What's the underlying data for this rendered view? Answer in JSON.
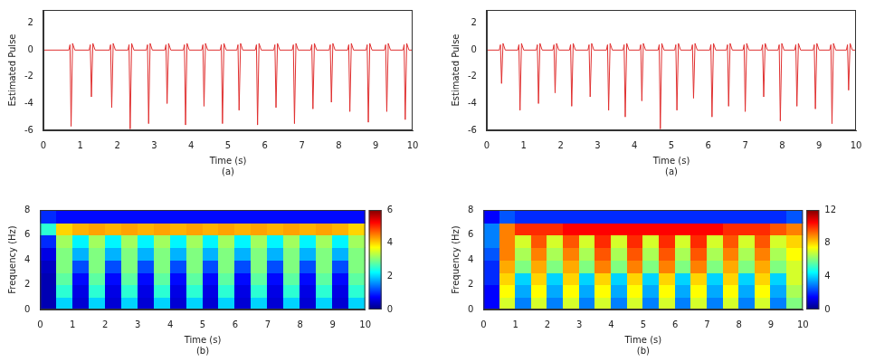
{
  "chart_data": [
    {
      "type": "line",
      "xlabel": "Time (s)",
      "ylabel": "Estimated Pulse",
      "caption": "(a)",
      "color": "#e03030",
      "grid": false,
      "xlim": [
        0,
        10
      ],
      "xticks": [
        0,
        1,
        2,
        3,
        4,
        5,
        6,
        7,
        8,
        9,
        10
      ],
      "ylim": [
        -6,
        3
      ],
      "yticks": [
        -6,
        -4,
        -2,
        0,
        2
      ],
      "x": [
        0,
        0.69,
        0.72,
        0.75,
        0.79,
        0.85,
        1.24,
        1.27,
        1.3,
        1.34,
        1.4,
        1.79,
        1.82,
        1.85,
        1.89,
        1.95,
        2.29,
        2.32,
        2.35,
        2.39,
        2.45,
        2.79,
        2.82,
        2.85,
        2.89,
        2.95,
        3.29,
        3.32,
        3.35,
        3.39,
        3.45,
        3.79,
        3.82,
        3.85,
        3.89,
        3.95,
        4.29,
        4.32,
        4.35,
        4.39,
        4.45,
        4.79,
        4.82,
        4.85,
        4.89,
        4.95,
        5.24,
        5.27,
        5.3,
        5.34,
        5.4,
        5.74,
        5.77,
        5.8,
        5.84,
        5.9,
        6.24,
        6.27,
        6.3,
        6.34,
        6.4,
        6.74,
        6.77,
        6.8,
        6.84,
        6.9,
        7.24,
        7.27,
        7.3,
        7.34,
        7.4,
        7.74,
        7.77,
        7.8,
        7.84,
        7.9,
        8.24,
        8.27,
        8.3,
        8.34,
        8.4,
        8.74,
        8.77,
        8.8,
        8.84,
        8.9,
        9.24,
        9.27,
        9.3,
        9.34,
        9.4,
        9.74,
        9.77,
        9.8,
        9.84,
        9.9,
        10
      ],
      "values": [
        0,
        0,
        0.4,
        -5.7,
        0.5,
        0,
        0,
        0.4,
        -3.5,
        0.5,
        0,
        0,
        0.4,
        -4.3,
        0.5,
        0,
        0,
        0.4,
        -5.9,
        0.5,
        0,
        0,
        0.4,
        -5.5,
        0.5,
        0,
        0,
        0.4,
        -4.0,
        0.5,
        0,
        0,
        0.4,
        -5.6,
        0.5,
        0,
        0,
        0.4,
        -4.2,
        0.5,
        0,
        0,
        0.4,
        -5.5,
        0.5,
        0,
        0,
        0.4,
        -4.5,
        0.5,
        0,
        0,
        0.4,
        -5.6,
        0.5,
        0,
        0,
        0.4,
        -4.3,
        0.5,
        0,
        0,
        0.4,
        -5.5,
        0.5,
        0,
        0,
        0.4,
        -4.4,
        0.5,
        0,
        0,
        0.4,
        -3.9,
        0.5,
        0,
        0,
        0.4,
        -4.6,
        0.5,
        0,
        0,
        0.4,
        -5.4,
        0.5,
        0,
        0,
        0.4,
        -4.6,
        0.5,
        0,
        0,
        0.4,
        -5.2,
        0.5,
        0,
        0
      ]
    },
    {
      "type": "line",
      "xlabel": "Time (s)",
      "ylabel": "Estimated Pulse",
      "caption": "(a)",
      "color": "#e03030",
      "grid": false,
      "xlim": [
        0,
        10
      ],
      "xticks": [
        0,
        1,
        2,
        3,
        4,
        5,
        6,
        7,
        8,
        9,
        10
      ],
      "ylim": [
        -6,
        3
      ],
      "yticks": [
        -6,
        -4,
        -2,
        0,
        2
      ],
      "x": [
        0,
        0.34,
        0.37,
        0.4,
        0.44,
        0.5,
        0.84,
        0.87,
        0.9,
        0.94,
        1.0,
        1.34,
        1.37,
        1.4,
        1.44,
        1.5,
        1.79,
        1.82,
        1.85,
        1.89,
        1.95,
        2.24,
        2.27,
        2.3,
        2.34,
        2.4,
        2.74,
        2.77,
        2.8,
        2.84,
        2.9,
        3.24,
        3.27,
        3.3,
        3.34,
        3.4,
        3.69,
        3.72,
        3.75,
        3.79,
        3.85,
        4.14,
        4.17,
        4.2,
        4.24,
        4.3,
        4.64,
        4.67,
        4.7,
        4.74,
        4.8,
        5.09,
        5.12,
        5.15,
        5.19,
        5.25,
        5.54,
        5.57,
        5.6,
        5.64,
        5.7,
        6.04,
        6.07,
        6.1,
        6.14,
        6.2,
        6.49,
        6.52,
        6.55,
        6.59,
        6.65,
        6.94,
        6.97,
        7.0,
        7.04,
        7.1,
        7.44,
        7.47,
        7.5,
        7.54,
        7.6,
        7.89,
        7.92,
        7.95,
        7.99,
        8.05,
        8.34,
        8.37,
        8.4,
        8.44,
        8.5,
        8.84,
        8.87,
        8.9,
        8.94,
        9.0,
        9.29,
        9.32,
        9.35,
        9.39,
        9.45,
        9.74,
        9.77,
        9.8,
        9.84,
        9.9,
        10
      ],
      "values": [
        0,
        0,
        0.4,
        -2.5,
        0.5,
        0,
        0,
        0.4,
        -4.5,
        0.5,
        0,
        0,
        0.4,
        -4.0,
        0.5,
        0,
        0,
        0.4,
        -3.2,
        0.5,
        0,
        0,
        0.4,
        -4.2,
        0.5,
        0,
        0,
        0.4,
        -3.5,
        0.5,
        0,
        0,
        0.4,
        -4.5,
        0.5,
        0,
        0,
        0.4,
        -5.0,
        0.5,
        0,
        0,
        0.4,
        -3.8,
        0.5,
        0,
        0,
        0.4,
        -5.9,
        0.5,
        0,
        0,
        0.4,
        -4.5,
        0.5,
        0,
        0,
        0.4,
        -3.6,
        0.5,
        0,
        0,
        0.4,
        -5.0,
        0.5,
        0,
        0,
        0.4,
        -4.2,
        0.5,
        0,
        0,
        0.4,
        -4.6,
        0.5,
        0,
        0,
        0.4,
        -3.5,
        0.5,
        0,
        0,
        0.4,
        -5.3,
        0.5,
        0,
        0,
        0.4,
        -4.2,
        0.5,
        0,
        0,
        0.4,
        -4.4,
        0.5,
        0,
        0,
        0.4,
        -5.5,
        0.5,
        0,
        0,
        0.4,
        -3.0,
        0.5,
        0,
        0
      ]
    },
    {
      "type": "heatmap",
      "xlabel": "Time (s)",
      "ylabel": "Frequency (Hz)",
      "caption": "(b)",
      "xlim": [
        0,
        10
      ],
      "xticks": [
        0,
        1,
        2,
        3,
        4,
        5,
        6,
        7,
        8,
        9,
        10
      ],
      "ylim": [
        0,
        8
      ],
      "yticks": [
        0,
        2,
        4,
        6,
        8
      ],
      "x_bins": [
        0,
        0.5,
        1,
        1.5,
        2,
        2.5,
        3,
        3.5,
        4,
        4.5,
        5,
        5.5,
        6,
        6.5,
        7,
        7.5,
        8,
        8.5,
        9,
        9.5,
        10
      ],
      "y_bins": [
        0,
        1,
        2,
        3,
        4,
        5,
        6,
        7,
        8
      ],
      "colorbar_lim": [
        0,
        6
      ],
      "colorbar_ticks": [
        0,
        2,
        4,
        6
      ],
      "cells": [
        [
          0.3,
          2.0,
          0.5,
          2.0,
          0.5,
          2.0,
          0.5,
          2.0,
          0.5,
          2.0,
          0.5,
          2.0,
          0.5,
          2.0,
          0.5,
          2.0,
          0.5,
          2.0,
          0.5,
          2.0
        ],
        [
          0.3,
          2.5,
          0.6,
          2.5,
          0.6,
          2.5,
          0.6,
          2.5,
          0.6,
          2.5,
          0.6,
          2.5,
          0.6,
          2.5,
          0.6,
          2.5,
          0.6,
          2.5,
          0.6,
          2.5
        ],
        [
          0.3,
          2.8,
          0.8,
          2.8,
          0.8,
          2.8,
          0.8,
          2.8,
          0.8,
          2.8,
          0.8,
          2.8,
          0.8,
          2.8,
          0.8,
          2.8,
          0.8,
          2.8,
          0.8,
          2.8
        ],
        [
          0.4,
          3.0,
          1.2,
          3.0,
          1.2,
          3.0,
          1.2,
          3.0,
          1.2,
          3.0,
          1.2,
          3.0,
          1.2,
          3.0,
          1.2,
          3.0,
          1.2,
          3.0,
          1.2,
          3.0
        ],
        [
          0.6,
          3.0,
          1.8,
          3.0,
          1.8,
          3.0,
          1.8,
          3.0,
          1.8,
          3.0,
          1.8,
          3.0,
          1.8,
          3.0,
          1.8,
          3.0,
          1.8,
          3.0,
          1.8,
          3.0
        ],
        [
          1.0,
          3.2,
          2.2,
          3.2,
          2.2,
          3.2,
          2.2,
          3.2,
          2.2,
          3.2,
          2.2,
          3.2,
          2.2,
          3.2,
          2.2,
          3.2,
          2.2,
          3.2,
          2.2,
          3.2
        ],
        [
          2.5,
          4.0,
          4.2,
          4.3,
          4.2,
          4.3,
          4.2,
          4.3,
          4.2,
          4.3,
          4.2,
          4.3,
          4.2,
          4.3,
          4.2,
          4.3,
          4.2,
          4.3,
          4.2,
          4.0
        ],
        [
          1.0,
          0.8,
          0.8,
          0.8,
          0.8,
          0.8,
          0.8,
          0.8,
          0.8,
          0.8,
          0.8,
          0.8,
          0.8,
          0.8,
          0.8,
          0.8,
          0.8,
          0.8,
          0.8,
          0.8
        ]
      ]
    },
    {
      "type": "heatmap",
      "xlabel": "Time (s)",
      "ylabel": "Frequency (Hz)",
      "caption": "(b)",
      "xlim": [
        0,
        10
      ],
      "xticks": [
        0,
        1,
        2,
        3,
        4,
        5,
        6,
        7,
        8,
        9,
        10
      ],
      "ylim": [
        0,
        8
      ],
      "yticks": [
        0,
        2,
        4,
        6,
        8
      ],
      "x_bins": [
        0,
        0.5,
        1,
        1.5,
        2,
        2.5,
        3,
        3.5,
        4,
        4.5,
        5,
        5.5,
        6,
        6.5,
        7,
        7.5,
        8,
        8.5,
        9,
        9.5,
        10
      ],
      "y_bins": [
        0,
        1,
        2,
        3,
        4,
        5,
        6,
        7,
        8
      ],
      "colorbar_lim": [
        0,
        12
      ],
      "colorbar_ticks": [
        0,
        4,
        8,
        12
      ],
      "cells": [
        [
          1.5,
          7,
          3,
          7,
          3,
          7,
          3,
          7,
          3,
          7,
          3,
          7,
          3,
          7,
          3,
          7,
          3,
          7,
          3,
          6
        ],
        [
          1.5,
          7.5,
          3.5,
          7.5,
          3.5,
          7.5,
          3.5,
          7.5,
          3.5,
          7.5,
          3.5,
          7.5,
          3.5,
          7.5,
          3.5,
          7.5,
          3.5,
          7.5,
          3.5,
          6.5
        ],
        [
          2,
          8,
          4,
          8,
          4,
          8,
          4,
          8,
          4,
          8,
          4,
          8,
          4,
          8,
          4,
          8,
          4,
          8,
          4,
          7
        ],
        [
          2,
          8.5,
          6,
          8.5,
          6,
          8.5,
          6,
          9,
          6,
          9,
          6,
          9,
          6,
          9,
          6,
          8.5,
          6,
          8.5,
          6,
          7
        ],
        [
          2.5,
          9,
          6.5,
          9,
          6.5,
          9,
          6.5,
          9.5,
          6.5,
          9.5,
          6.5,
          9.5,
          6.5,
          9.5,
          6.5,
          9,
          6.5,
          9,
          6.5,
          7.5
        ],
        [
          3,
          9,
          7,
          9.5,
          7,
          9.5,
          7,
          10,
          7,
          10,
          7,
          10,
          7,
          10,
          7,
          9.5,
          7,
          9.5,
          7,
          8
        ],
        [
          3,
          9,
          10,
          10,
          10,
          10.5,
          10.5,
          10.5,
          10.5,
          10.5,
          10.5,
          10.5,
          10.5,
          10.5,
          10.5,
          10,
          10,
          10,
          9.5,
          9
        ],
        [
          1.5,
          2.5,
          2,
          2,
          2,
          2,
          2,
          2,
          2,
          2,
          2,
          2,
          2,
          2,
          2,
          2,
          2,
          2,
          2,
          2.5
        ]
      ]
    }
  ]
}
